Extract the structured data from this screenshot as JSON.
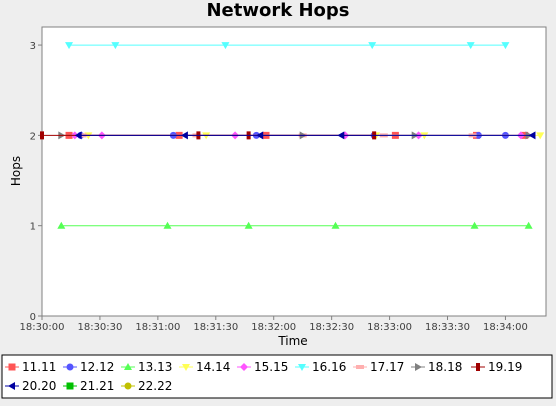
{
  "chart_data": {
    "type": "line",
    "title": "Network Hops",
    "xlabel": "Time",
    "ylabel": "Hops",
    "ylim": [
      0,
      3.2
    ],
    "xlim": [
      "18:30:00",
      "18:34:21"
    ],
    "yticks": [
      "0",
      "1",
      "2",
      "3"
    ],
    "xticks": [
      "18:30:00",
      "18:30:30",
      "18:31:00",
      "18:31:30",
      "18:32:00",
      "18:32:30",
      "18:33:00",
      "18:33:30",
      "18:34:00"
    ],
    "grid": false,
    "legend_position": "bottom",
    "series": [
      {
        "name": "11.11",
        "color": "#ff5555",
        "marker": "square",
        "x": [
          "18:30:14",
          "18:31:11",
          "18:31:56",
          "18:33:03",
          "18:33:45",
          "18:34:10"
        ],
        "y": [
          2,
          2,
          2,
          2,
          2,
          2
        ]
      },
      {
        "name": "12.12",
        "color": "#5555ff",
        "marker": "circle",
        "x": [
          "18:30:20",
          "18:31:08",
          "18:31:51",
          "18:32:52",
          "18:33:46",
          "18:34:00"
        ],
        "y": [
          2,
          2,
          2,
          2,
          2,
          2
        ]
      },
      {
        "name": "13.13",
        "color": "#55ff55",
        "marker": "triangle-up",
        "x": [
          "18:30:10",
          "18:31:05",
          "18:31:47",
          "18:32:32",
          "18:33:44",
          "18:34:12"
        ],
        "y": [
          1,
          1,
          1,
          1,
          1,
          1
        ]
      },
      {
        "name": "14.14",
        "color": "#ffff55",
        "marker": "triangle-down",
        "x": [
          "18:30:24",
          "18:31:25",
          "18:32:53",
          "18:33:18",
          "18:34:18"
        ],
        "y": [
          2,
          2,
          2,
          2,
          2
        ]
      },
      {
        "name": "15.15",
        "color": "#ff55ff",
        "marker": "diamond",
        "x": [
          "18:30:17",
          "18:30:31",
          "18:31:40",
          "18:32:37",
          "18:33:15",
          "18:34:08"
        ],
        "y": [
          2,
          2,
          2,
          2,
          2,
          2
        ]
      },
      {
        "name": "16.16",
        "color": "#55ffff",
        "marker": "triangle-down",
        "x": [
          "18:30:14",
          "18:30:38",
          "18:31:35",
          "18:32:51",
          "18:33:42",
          "18:34:00"
        ],
        "y": [
          3,
          3,
          3,
          3,
          3,
          3
        ]
      },
      {
        "name": "17.17",
        "color": "#ffafaf",
        "marker": "rect-wide",
        "x": [
          "18:30:21",
          "18:31:20",
          "18:32:15",
          "18:32:57",
          "18:33:43"
        ],
        "y": [
          2,
          2,
          2,
          2,
          2
        ]
      },
      {
        "name": "18.18",
        "color": "#808080",
        "marker": "triangle-right",
        "x": [
          "18:30:10",
          "18:32:15",
          "18:33:13",
          "18:34:12"
        ],
        "y": [
          2,
          2,
          2,
          2
        ]
      },
      {
        "name": "19.19",
        "color": "#a00000",
        "marker": "rect-tall",
        "x": [
          "18:30:00",
          "18:31:21",
          "18:31:47",
          "18:32:52"
        ],
        "y": [
          2,
          2,
          2,
          2
        ]
      },
      {
        "name": "20.20",
        "color": "#0000a0",
        "marker": "triangle-left",
        "x": [
          "18:30:19",
          "18:31:14",
          "18:31:53",
          "18:32:35",
          "18:34:14"
        ],
        "y": [
          2,
          2,
          2,
          2,
          2
        ]
      },
      {
        "name": "21.21",
        "color": "#00c000",
        "marker": "square",
        "x": [],
        "y": []
      },
      {
        "name": "22.22",
        "color": "#c0c000",
        "marker": "circle",
        "x": [],
        "y": []
      }
    ]
  }
}
